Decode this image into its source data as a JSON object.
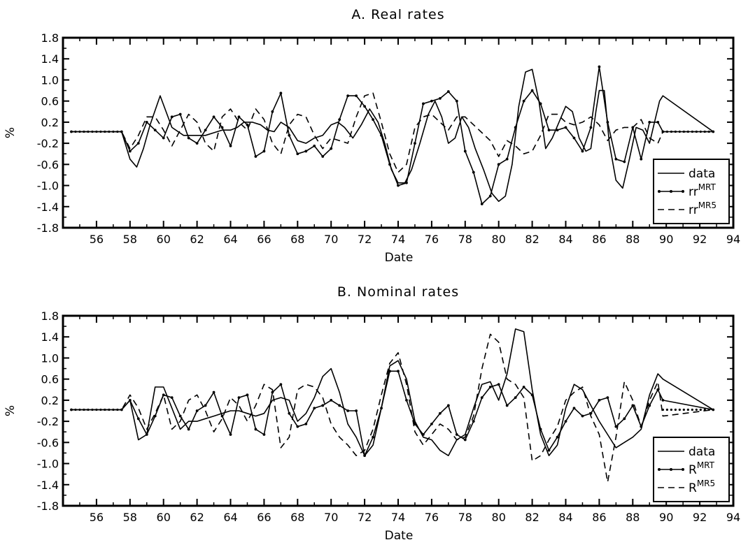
{
  "chart_data": [
    {
      "type": "line",
      "title": "A. Real rates",
      "xlabel": "Date",
      "ylabel": "%",
      "xlim": [
        54,
        94
      ],
      "ylim": [
        -1.8,
        1.8
      ],
      "x_ticks": [
        "56",
        "58",
        "60",
        "62",
        "64",
        "66",
        "68",
        "70",
        "72",
        "74",
        "76",
        "78",
        "80",
        "82",
        "84",
        "86",
        "88",
        "90",
        "92",
        "94"
      ],
      "y_ticks": [
        "1.8",
        "1.4",
        "1.0",
        "0.6",
        "0.2",
        "-0.2",
        "-0.6",
        "-1.0",
        "-1.4",
        "-1.8"
      ],
      "legend_position": "bottom-right",
      "series": [
        {
          "name": "data",
          "label_base": "data",
          "label_sup": "",
          "style": "solid",
          "markers": false,
          "x": [
            54.5,
            57.5,
            58,
            58.4,
            58.8,
            59.2,
            59.8,
            60.5,
            61.2,
            62,
            62.5,
            63,
            63.5,
            64,
            64.4,
            64.8,
            65.3,
            65.8,
            66.2,
            66.6,
            67,
            67.5,
            68,
            68.5,
            69,
            69.5,
            70,
            70.4,
            70.8,
            71.3,
            71.8,
            72.3,
            72.8,
            73.2,
            73.6,
            74,
            74.4,
            74.8,
            75.3,
            75.8,
            76.2,
            76.6,
            77,
            77.4,
            77.8,
            78.2,
            78.6,
            79.1,
            79.6,
            80,
            80.4,
            80.8,
            81.2,
            81.6,
            82,
            82.4,
            82.8,
            83.2,
            83.6,
            84,
            84.4,
            84.8,
            85.2,
            85.5,
            85.8,
            86,
            86.3,
            86.6,
            87,
            87.4,
            87.8,
            88.2,
            88.6,
            89,
            89.3,
            89.6,
            89.8,
            92.8
          ],
          "y": [
            0.02,
            0.02,
            -0.5,
            -0.65,
            -0.3,
            0.15,
            0.7,
            0.1,
            -0.05,
            -0.05,
            -0.05,
            0,
            0.05,
            0.05,
            0.1,
            0.2,
            0.2,
            0.15,
            0.05,
            0.02,
            0.2,
            0.1,
            -0.15,
            -0.2,
            -0.1,
            -0.05,
            0.15,
            0.2,
            0.1,
            -0.1,
            0.15,
            0.45,
            0.2,
            -0.2,
            -0.7,
            -0.95,
            -0.95,
            -0.7,
            -0.2,
            0.35,
            0.6,
            0.3,
            -0.2,
            -0.1,
            0.3,
            0.1,
            -0.3,
            -0.7,
            -1.15,
            -1.3,
            -1.2,
            -0.6,
            0.5,
            1.15,
            1.2,
            0.6,
            -0.3,
            -0.1,
            0.2,
            0.5,
            0.4,
            -0.1,
            -0.35,
            -0.3,
            0.4,
            0.8,
            0.8,
            -0.2,
            -0.9,
            -1.05,
            -0.5,
            0.1,
            0.05,
            -0.2,
            0.2,
            0.6,
            0.7,
            0.02
          ]
        },
        {
          "name": "rr^MRT",
          "label_base": "rr",
          "label_sup": "MRT",
          "style": "solid",
          "markers": true,
          "x": [
            54.5,
            57.5,
            58,
            58.5,
            59,
            59.5,
            60,
            60.5,
            61,
            61.5,
            62,
            62.5,
            63,
            63.5,
            64,
            64.5,
            65,
            65.5,
            66,
            66.5,
            67,
            67.5,
            68,
            68.5,
            69,
            69.5,
            70,
            70.5,
            71,
            71.5,
            72,
            72.5,
            73,
            73.5,
            74,
            74.5,
            75,
            75.5,
            76,
            76.5,
            77,
            77.5,
            78,
            78.5,
            79,
            79.5,
            80,
            80.5,
            81,
            81.5,
            82,
            82.5,
            83,
            83.5,
            84,
            84.5,
            85,
            85.5,
            86,
            86.5,
            87,
            87.5,
            88,
            88.5,
            89,
            89.5,
            89.8,
            92.8
          ],
          "y": [
            0.02,
            0.02,
            -0.35,
            -0.2,
            0.2,
            0.05,
            -0.1,
            0.3,
            0.35,
            -0.1,
            -0.2,
            0.05,
            0.3,
            0.1,
            -0.25,
            0.3,
            0.15,
            -0.45,
            -0.35,
            0.4,
            0.75,
            -0.05,
            -0.4,
            -0.35,
            -0.25,
            -0.45,
            -0.3,
            0.25,
            0.7,
            0.7,
            0.5,
            0.25,
            -0.05,
            -0.6,
            -1.0,
            -0.95,
            -0.2,
            0.55,
            0.6,
            0.65,
            0.78,
            0.6,
            -0.35,
            -0.75,
            -1.35,
            -1.2,
            -0.6,
            -0.5,
            0.1,
            0.6,
            0.8,
            0.55,
            0.05,
            0.05,
            0.1,
            -0.1,
            -0.35,
            0.1,
            1.25,
            0.2,
            -0.5,
            -0.55,
            0.1,
            -0.5,
            0.2,
            0.2,
            0.02,
            0.02
          ]
        },
        {
          "name": "rr^MR5",
          "label_base": "rr",
          "label_sup": "MR5",
          "style": "dashed",
          "markers": false,
          "x": [
            54.5,
            57.5,
            58,
            58.5,
            59,
            59.5,
            60,
            60.5,
            61,
            61.5,
            62,
            62.5,
            63,
            63.5,
            64,
            64.5,
            65,
            65.5,
            66,
            66.5,
            67,
            67.5,
            68,
            68.5,
            69,
            69.5,
            70,
            70.5,
            71,
            71.5,
            72,
            72.5,
            73,
            73.5,
            74,
            74.5,
            75,
            75.5,
            76,
            76.5,
            77,
            77.5,
            78,
            78.5,
            79,
            79.5,
            80,
            80.5,
            81,
            81.5,
            82,
            82.5,
            83,
            83.5,
            84,
            84.5,
            85,
            85.5,
            86,
            86.5,
            87,
            87.5,
            88,
            88.5,
            89,
            89.5,
            89.8,
            92.8
          ],
          "y": [
            0.02,
            0.02,
            -0.3,
            -0.05,
            0.3,
            0.3,
            0.05,
            -0.25,
            0.05,
            0.35,
            0.2,
            -0.2,
            -0.35,
            0.3,
            0.45,
            0.2,
            0.05,
            0.45,
            0.25,
            -0.2,
            -0.4,
            0.15,
            0.35,
            0.3,
            -0.05,
            -0.3,
            -0.1,
            -0.15,
            -0.2,
            0.3,
            0.7,
            0.75,
            0.2,
            -0.4,
            -0.75,
            -0.6,
            0.1,
            0.3,
            0.35,
            0.2,
            0.05,
            0.3,
            0.3,
            0.15,
            0,
            -0.15,
            -0.45,
            -0.15,
            -0.25,
            -0.4,
            -0.35,
            -0.05,
            0.35,
            0.35,
            0.2,
            0.15,
            0.2,
            0.3,
            0.15,
            -0.15,
            0.05,
            0.1,
            0.1,
            0.25,
            -0.1,
            -0.2,
            0.02,
            0.02
          ]
        }
      ]
    },
    {
      "type": "line",
      "title": "B. Nominal rates",
      "xlabel": "Date",
      "ylabel": "%",
      "xlim": [
        54,
        94
      ],
      "ylim": [
        -1.8,
        1.8
      ],
      "x_ticks": [
        "56",
        "58",
        "60",
        "62",
        "64",
        "66",
        "68",
        "70",
        "72",
        "74",
        "76",
        "78",
        "80",
        "82",
        "84",
        "86",
        "88",
        "90",
        "92",
        "94"
      ],
      "y_ticks": [
        "1.8",
        "1.4",
        "1.0",
        "0.6",
        "0.2",
        "-0.2",
        "-0.6",
        "-1.0",
        "-1.4",
        "-1.8"
      ],
      "legend_position": "bottom-right",
      "series": [
        {
          "name": "data",
          "label_base": "data",
          "label_sup": "",
          "style": "solid",
          "markers": false,
          "x": [
            54.5,
            57.5,
            58,
            58.5,
            59,
            59.5,
            60,
            60.5,
            61,
            61.5,
            62,
            62.5,
            63,
            63.5,
            64,
            64.5,
            65,
            65.5,
            66,
            66.5,
            67,
            67.5,
            68,
            68.5,
            69,
            69.5,
            70,
            70.5,
            71,
            71.5,
            72,
            72.5,
            73,
            73.5,
            74,
            74.5,
            75,
            75.5,
            76,
            76.5,
            77,
            77.5,
            78,
            78.5,
            79,
            79.5,
            80,
            80.5,
            81,
            81.5,
            82,
            82.5,
            83,
            83.5,
            84,
            84.5,
            85,
            85.5,
            86,
            86.5,
            87,
            87.5,
            88,
            88.5,
            89,
            89.5,
            89.8,
            92.8
          ],
          "y": [
            0.02,
            0.02,
            0.2,
            -0.55,
            -0.45,
            0.45,
            0.45,
            0.05,
            -0.35,
            -0.2,
            -0.2,
            -0.15,
            -0.1,
            -0.05,
            0,
            0,
            -0.05,
            -0.1,
            -0.05,
            0.2,
            0.25,
            0.2,
            -0.2,
            -0.05,
            0.25,
            0.65,
            0.8,
            0.35,
            -0.25,
            -0.5,
            -0.85,
            -0.65,
            0.05,
            0.85,
            0.95,
            0.6,
            -0.2,
            -0.5,
            -0.55,
            -0.75,
            -0.85,
            -0.55,
            -0.45,
            0.05,
            0.5,
            0.55,
            0.2,
            0.7,
            1.55,
            1.5,
            0.4,
            -0.45,
            -0.85,
            -0.65,
            0.05,
            0.5,
            0.4,
            0.1,
            -0.2,
            -0.45,
            -0.7,
            -0.6,
            -0.5,
            -0.35,
            0.3,
            0.7,
            0.6,
            0.02
          ]
        },
        {
          "name": "R^MRT",
          "label_base": "R",
          "label_sup": "MRT",
          "style": "solid",
          "markers": true,
          "x": [
            54.5,
            57.5,
            58,
            58.5,
            59,
            59.5,
            60,
            60.5,
            61,
            61.5,
            62,
            62.5,
            63,
            63.5,
            64,
            64.5,
            65,
            65.5,
            66,
            66.5,
            67,
            67.5,
            68,
            68.5,
            69,
            69.5,
            70,
            70.5,
            71,
            71.5,
            72,
            72.5,
            73,
            73.5,
            74,
            74.5,
            75,
            75.5,
            76,
            76.5,
            77,
            77.5,
            78,
            78.5,
            79,
            79.5,
            80,
            80.5,
            81,
            81.5,
            82,
            82.5,
            83,
            83.5,
            84,
            84.5,
            85,
            85.5,
            86,
            86.5,
            87,
            87.5,
            88,
            88.5,
            89,
            89.5,
            89.8,
            92.8
          ],
          "y": [
            0.02,
            0.02,
            0.2,
            -0.15,
            -0.45,
            -0.1,
            0.3,
            0.25,
            -0.1,
            -0.35,
            0,
            0.1,
            0.35,
            -0.1,
            -0.45,
            0.25,
            0.3,
            -0.35,
            -0.45,
            0.35,
            0.5,
            -0.05,
            -0.3,
            -0.25,
            0.05,
            0.1,
            0.2,
            0.1,
            0.0,
            0.0,
            -0.85,
            -0.5,
            0.05,
            0.75,
            0.75,
            0.2,
            -0.25,
            -0.45,
            -0.25,
            -0.05,
            0.1,
            -0.45,
            -0.55,
            -0.2,
            0.25,
            0.45,
            0.5,
            0.1,
            0.25,
            0.45,
            0.3,
            -0.35,
            -0.75,
            -0.5,
            -0.2,
            0.05,
            -0.1,
            -0.05,
            0.2,
            0.25,
            -0.3,
            -0.15,
            0.1,
            -0.3,
            0.1,
            0.4,
            0.2,
            0.02
          ]
        },
        {
          "name": "R^MR5",
          "label_base": "R",
          "label_sup": "MR5",
          "style": "dashed",
          "markers": false,
          "x": [
            54.5,
            57.5,
            58,
            58.5,
            59,
            59.5,
            60,
            60.5,
            61,
            61.5,
            62,
            62.5,
            63,
            63.5,
            64,
            64.5,
            65,
            65.5,
            66,
            66.5,
            67,
            67.5,
            68,
            68.5,
            69,
            69.5,
            70,
            70.5,
            71,
            71.5,
            72,
            72.5,
            73,
            73.5,
            74,
            74.5,
            75,
            75.5,
            76,
            76.5,
            77,
            77.5,
            78,
            78.5,
            79,
            79.5,
            80,
            80.5,
            81,
            81.5,
            82,
            82.5,
            83,
            83.5,
            84,
            84.5,
            85,
            85.5,
            86,
            86.5,
            87,
            87.5,
            88,
            88.5,
            89,
            89.5,
            89.8,
            92.8
          ],
          "y": [
            0.02,
            0.02,
            0.3,
            0.05,
            -0.35,
            -0.05,
            0.3,
            -0.35,
            -0.2,
            0.2,
            0.3,
            0.0,
            -0.4,
            -0.15,
            0.25,
            0.1,
            -0.2,
            0.1,
            0.5,
            0.4,
            -0.7,
            -0.5,
            0.4,
            0.5,
            0.45,
            0.25,
            -0.25,
            -0.5,
            -0.65,
            -0.85,
            -0.75,
            -0.35,
            0.3,
            0.9,
            1.1,
            0.5,
            -0.4,
            -0.65,
            -0.45,
            -0.25,
            -0.35,
            -0.55,
            -0.5,
            -0.1,
            0.8,
            1.45,
            1.3,
            0.6,
            0.5,
            0.25,
            -0.95,
            -0.85,
            -0.55,
            -0.3,
            0.2,
            0.35,
            0.45,
            -0.1,
            -0.45,
            -1.35,
            -0.5,
            0.55,
            0.2,
            -0.3,
            0.2,
            0.55,
            -0.1,
            0.02
          ]
        }
      ]
    }
  ]
}
